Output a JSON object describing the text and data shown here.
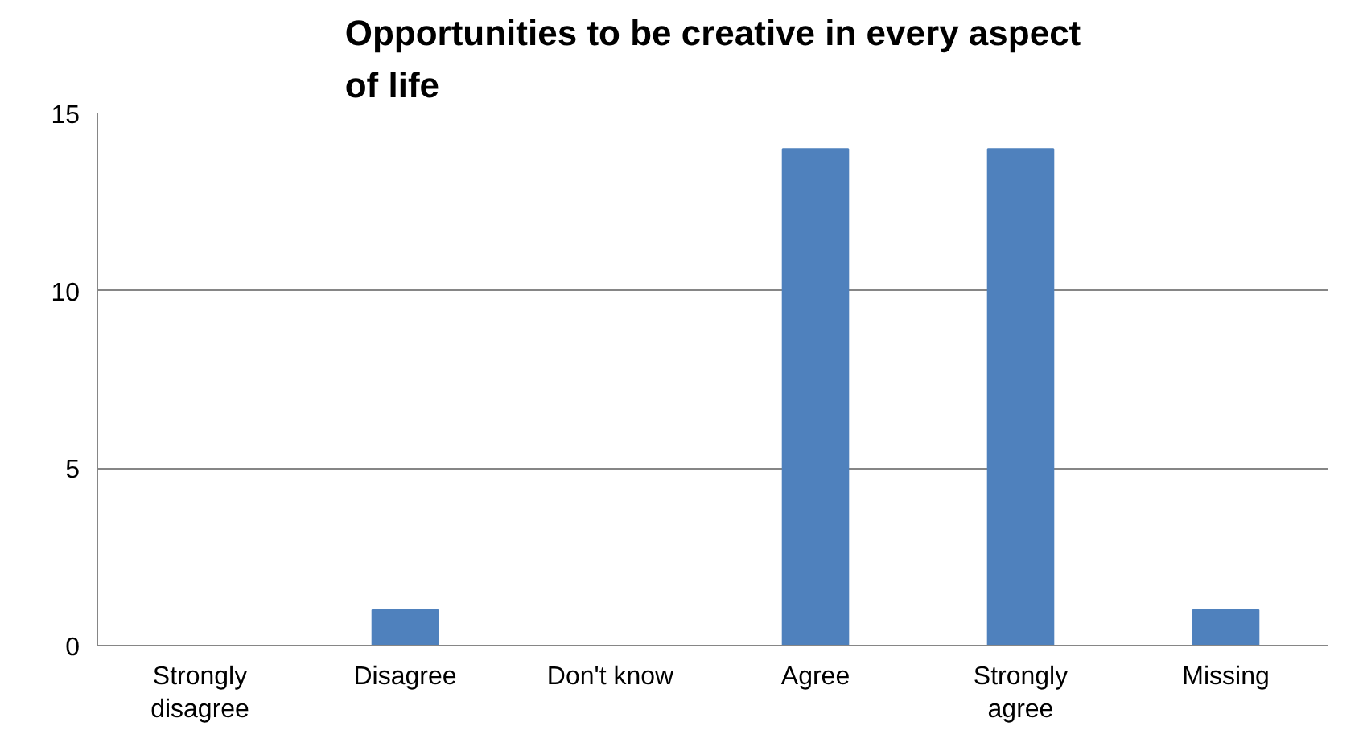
{
  "chart_data": {
    "type": "bar",
    "title": "Opportunities to be creative in every aspect of life",
    "categories": [
      "Strongly disagree",
      "Disagree",
      "Don't know",
      "Agree",
      "Strongly agree",
      "Missing"
    ],
    "values": [
      0,
      1,
      0,
      14,
      14,
      1
    ],
    "color": "#4f81bd",
    "ylim": [
      0,
      15
    ],
    "yticks": [
      0,
      5,
      10,
      15
    ],
    "grid": "y"
  }
}
